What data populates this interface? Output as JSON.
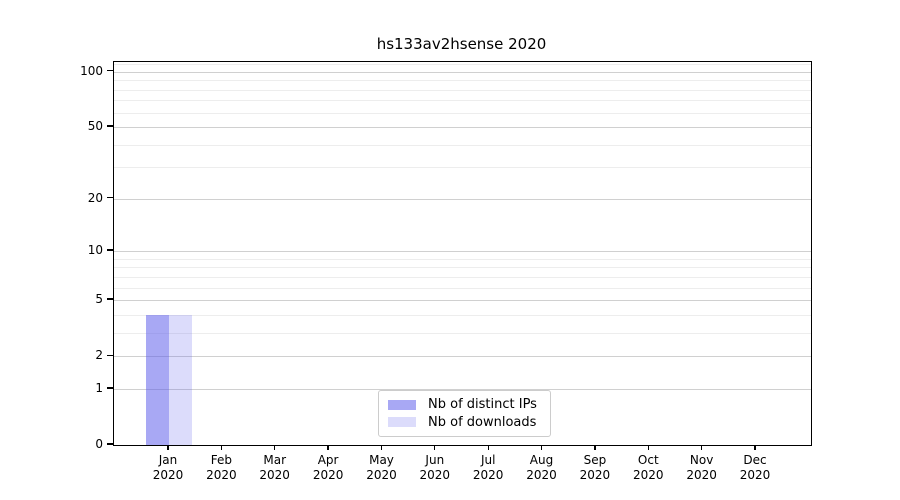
{
  "chart_data": {
    "type": "bar",
    "title": "hs133av2hsense 2020",
    "categories": [
      {
        "month": "Jan",
        "year": "2020"
      },
      {
        "month": "Feb",
        "year": "2020"
      },
      {
        "month": "Mar",
        "year": "2020"
      },
      {
        "month": "Apr",
        "year": "2020"
      },
      {
        "month": "May",
        "year": "2020"
      },
      {
        "month": "Jun",
        "year": "2020"
      },
      {
        "month": "Jul",
        "year": "2020"
      },
      {
        "month": "Aug",
        "year": "2020"
      },
      {
        "month": "Sep",
        "year": "2020"
      },
      {
        "month": "Oct",
        "year": "2020"
      },
      {
        "month": "Nov",
        "year": "2020"
      },
      {
        "month": "Dec",
        "year": "2020"
      }
    ],
    "series": [
      {
        "name": "Nb of distinct IPs",
        "color": "rgba(90,90,235,0.53)",
        "values": [
          4,
          0,
          0,
          0,
          0,
          0,
          0,
          0,
          0,
          0,
          0,
          0
        ]
      },
      {
        "name": "Nb of downloads",
        "color": "rgba(90,90,235,0.21)",
        "values": [
          4,
          0,
          0,
          0,
          0,
          0,
          0,
          0,
          0,
          0,
          0,
          0
        ]
      }
    ],
    "xlabel": "",
    "ylabel": "",
    "y_axis": {
      "scale": "log1p",
      "ylim": [
        0,
        113
      ],
      "major_ticks": [
        100,
        50,
        20,
        10,
        5,
        2,
        1,
        0
      ],
      "minor_ticks": [
        110,
        90,
        80,
        70,
        60,
        40,
        30,
        9,
        8,
        7,
        6,
        4,
        3
      ]
    },
    "grid": true,
    "legend_position": "lower center",
    "colors": {
      "grid_major": "#d0d0d0",
      "grid_minor": "#ededed",
      "spine": "#000000",
      "text": "#000000"
    }
  }
}
